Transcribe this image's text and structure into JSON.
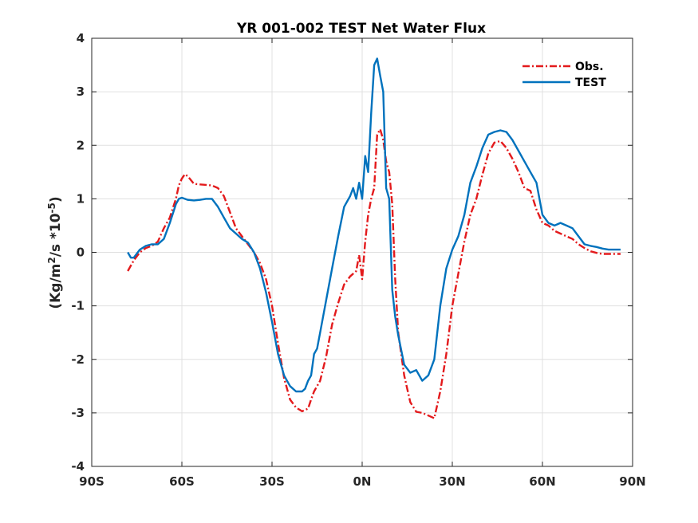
{
  "chart_data": {
    "type": "line",
    "title": "YR 001-002 TEST  Net Water Flux",
    "xlabel": "",
    "ylabel": "(Kg/m2/s *10-5)",
    "ylabel_parts": {
      "a": "(Kg/m",
      "sup1": "2",
      "b": "/s *10",
      "sup2": "-5",
      "c": ")"
    },
    "xlim": [
      -90,
      90
    ],
    "ylim": [
      -4,
      4
    ],
    "x_ticks": [
      -90,
      -60,
      -30,
      0,
      30,
      60,
      90
    ],
    "x_tick_labels": [
      "90S",
      "60S",
      "30S",
      "0N",
      "30N",
      "60N",
      "90N"
    ],
    "y_ticks": [
      -4,
      -3,
      -2,
      -1,
      0,
      1,
      2,
      3,
      4
    ],
    "y_tick_labels": [
      "-4",
      "-3",
      "-2",
      "-1",
      "0",
      "1",
      "2",
      "3",
      "4"
    ],
    "grid": true,
    "legend_position": "top-right",
    "series": [
      {
        "name": "Obs.",
        "color": "#e31a1c",
        "style": "dashdot",
        "x": [
          -78,
          -76,
          -74,
          -72,
          -70,
          -68,
          -66,
          -64,
          -62,
          -61,
          -60,
          -59,
          -58,
          -56,
          -54,
          -52,
          -50,
          -48,
          -46,
          -44,
          -42,
          -40,
          -38,
          -36,
          -34,
          -32,
          -30,
          -28,
          -26,
          -24,
          -22,
          -20,
          -18,
          -17,
          -16,
          -14,
          -12,
          -10,
          -8,
          -6,
          -4,
          -2,
          -1,
          0,
          1,
          2,
          3,
          4,
          5,
          6,
          7,
          8,
          9,
          10,
          11,
          12,
          14,
          16,
          18,
          20,
          22,
          24,
          26,
          28,
          30,
          32,
          34,
          36,
          38,
          40,
          42,
          44,
          46,
          48,
          50,
          52,
          54,
          56,
          58,
          60,
          62,
          64,
          66,
          68,
          70,
          72,
          74,
          76,
          78,
          80,
          82,
          84,
          86
        ],
        "y": [
          -0.35,
          -0.15,
          0.0,
          0.08,
          0.12,
          0.2,
          0.45,
          0.65,
          1.0,
          1.25,
          1.38,
          1.46,
          1.42,
          1.28,
          1.27,
          1.26,
          1.25,
          1.2,
          1.05,
          0.75,
          0.45,
          0.3,
          0.15,
          0.0,
          -0.2,
          -0.5,
          -1.0,
          -1.7,
          -2.35,
          -2.75,
          -2.9,
          -2.97,
          -2.92,
          -2.75,
          -2.6,
          -2.4,
          -1.95,
          -1.35,
          -0.95,
          -0.6,
          -0.45,
          -0.35,
          -0.05,
          -0.5,
          0.2,
          0.7,
          1.0,
          1.2,
          2.2,
          2.3,
          2.1,
          1.7,
          1.5,
          0.9,
          -0.5,
          -1.5,
          -2.3,
          -2.8,
          -2.98,
          -3.0,
          -3.05,
          -3.1,
          -2.6,
          -1.9,
          -1.0,
          -0.4,
          0.2,
          0.7,
          1.0,
          1.45,
          1.85,
          2.05,
          2.08,
          1.95,
          1.75,
          1.5,
          1.2,
          1.15,
          0.8,
          0.55,
          0.5,
          0.4,
          0.35,
          0.3,
          0.25,
          0.15,
          0.08,
          0.02,
          -0.01,
          -0.03,
          -0.03,
          -0.03,
          -0.03
        ]
      },
      {
        "name": "TEST",
        "color": "#0072bd",
        "style": "solid",
        "x": [
          -78,
          -77,
          -76,
          -74,
          -72,
          -70,
          -68,
          -66,
          -64,
          -62,
          -61,
          -60,
          -58,
          -56,
          -54,
          -52,
          -50,
          -48,
          -46,
          -44,
          -42,
          -40,
          -38,
          -36,
          -34,
          -32,
          -30,
          -28,
          -26,
          -24,
          -22,
          -20,
          -19,
          -18,
          -17,
          -16,
          -15,
          -14,
          -12,
          -10,
          -8,
          -6,
          -4,
          -3,
          -2,
          -1,
          0,
          1,
          2,
          3,
          4,
          5,
          6,
          7,
          8,
          9,
          10,
          11,
          12,
          14,
          16,
          18,
          20,
          22,
          24,
          26,
          28,
          30,
          32,
          34,
          36,
          38,
          40,
          42,
          44,
          46,
          48,
          50,
          52,
          54,
          56,
          58,
          60,
          62,
          64,
          66,
          68,
          70,
          72,
          74,
          76,
          78,
          80,
          82,
          84,
          86
        ],
        "y": [
          0.0,
          -0.1,
          -0.1,
          0.05,
          0.12,
          0.15,
          0.15,
          0.25,
          0.55,
          0.9,
          1.0,
          1.02,
          0.98,
          0.97,
          0.98,
          1.0,
          1.0,
          0.85,
          0.65,
          0.45,
          0.35,
          0.25,
          0.18,
          0.0,
          -0.3,
          -0.75,
          -1.3,
          -1.9,
          -2.3,
          -2.5,
          -2.6,
          -2.6,
          -2.55,
          -2.4,
          -2.3,
          -1.9,
          -1.8,
          -1.5,
          -0.9,
          -0.3,
          0.3,
          0.85,
          1.05,
          1.2,
          1.0,
          1.3,
          1.0,
          1.8,
          1.5,
          2.6,
          3.5,
          3.62,
          3.3,
          3.0,
          1.2,
          1.0,
          -0.7,
          -1.2,
          -1.55,
          -2.1,
          -2.25,
          -2.2,
          -2.4,
          -2.3,
          -2.0,
          -1.0,
          -0.3,
          0.05,
          0.3,
          0.7,
          1.3,
          1.6,
          1.95,
          2.2,
          2.25,
          2.28,
          2.25,
          2.1,
          1.9,
          1.7,
          1.5,
          1.3,
          0.7,
          0.55,
          0.5,
          0.55,
          0.5,
          0.45,
          0.3,
          0.15,
          0.12,
          0.1,
          0.07,
          0.05,
          0.05,
          0.05
        ]
      }
    ]
  }
}
